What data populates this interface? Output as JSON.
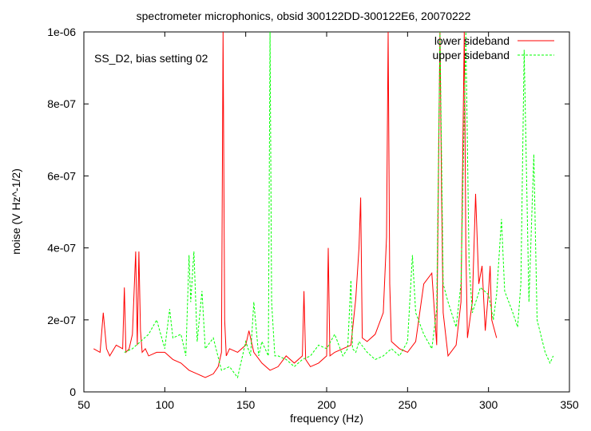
{
  "chart_data": {
    "type": "line",
    "title": "spectrometer microphonics, obsid 300122DD-300122E6, 20070222",
    "xlabel": "frequency (Hz)",
    "ylabel": "noise (V Hz^-1/2)",
    "annotation": "SS_D2, bias setting 02",
    "xlim": [
      50,
      350
    ],
    "ylim": [
      0,
      1e-06
    ],
    "x_ticks": [
      50,
      100,
      150,
      200,
      250,
      300,
      350
    ],
    "x_tick_labels": [
      "50",
      "100",
      "150",
      "200",
      "250",
      "300",
      "350"
    ],
    "y_ticks": [
      0,
      2e-07,
      4e-07,
      6e-07,
      8e-07,
      1e-06
    ],
    "y_tick_labels": [
      "0",
      "2e-07",
      "4e-07",
      "6e-07",
      "8e-07",
      "1e-06"
    ],
    "grid": false,
    "legend_position": "top-right",
    "series": [
      {
        "name": "lower sideband",
        "color": "#ff0000",
        "dash": "solid",
        "x": [
          56,
          60,
          62,
          64,
          66,
          70,
          74,
          75,
          76,
          78,
          80,
          82,
          83,
          84,
          85,
          86,
          88,
          90,
          95,
          100,
          105,
          110,
          115,
          120,
          125,
          130,
          133,
          135,
          136,
          137,
          138,
          140,
          145,
          150,
          152,
          155,
          160,
          165,
          170,
          175,
          180,
          185,
          186,
          187,
          190,
          195,
          200,
          201,
          202,
          205,
          210,
          215,
          218,
          220,
          221,
          222,
          225,
          230,
          235,
          237,
          238,
          239,
          240,
          245,
          250,
          255,
          260,
          265,
          268,
          270,
          271,
          272,
          275,
          280,
          283,
          285,
          286,
          287,
          290,
          292,
          294,
          296,
          298,
          300,
          301,
          302,
          305
        ],
        "y": [
          1.2e-07,
          1.1e-07,
          2.2e-07,
          1.2e-07,
          1e-07,
          1.3e-07,
          1.2e-07,
          2.9e-07,
          1.1e-07,
          1.2e-07,
          1.6e-07,
          3.9e-07,
          1.3e-07,
          3.9e-07,
          1.7e-07,
          1.1e-07,
          1.2e-07,
          1e-07,
          1.1e-07,
          1.1e-07,
          9e-08,
          8e-08,
          6e-08,
          5e-08,
          4e-08,
          5e-08,
          7e-08,
          1.1e-07,
          1e-06,
          2e-07,
          1e-07,
          1.2e-07,
          1.1e-07,
          1.3e-07,
          1.7e-07,
          1.1e-07,
          8e-08,
          6e-08,
          7e-08,
          1e-07,
          8e-08,
          1e-07,
          2.8e-07,
          9e-08,
          7e-08,
          8e-08,
          1e-07,
          4e-07,
          1e-07,
          1.1e-07,
          1.2e-07,
          1.3e-07,
          2.6e-07,
          4e-07,
          5.4e-07,
          1.5e-07,
          1.4e-07,
          1.6e-07,
          2.2e-07,
          4.3e-07,
          1e-06,
          3e-07,
          1.4e-07,
          1.2e-07,
          1.1e-07,
          1.4e-07,
          3e-07,
          3.3e-07,
          1.3e-07,
          1e-06,
          5.5e-07,
          2.2e-07,
          1e-07,
          1.3e-07,
          2.5e-07,
          1e-06,
          4e-07,
          1.5e-07,
          2.5e-07,
          5.5e-07,
          3e-07,
          3.5e-07,
          1.7e-07,
          2.8e-07,
          3.5e-07,
          2e-07,
          1.5e-07
        ]
      },
      {
        "name": "upper sideband",
        "color": "#00ff00",
        "dash": "dashed",
        "x": [
          75,
          80,
          85,
          90,
          95,
          100,
          103,
          105,
          110,
          113,
          115,
          116,
          118,
          120,
          123,
          125,
          130,
          135,
          140,
          145,
          150,
          153,
          155,
          158,
          160,
          164,
          165,
          166,
          168,
          170,
          175,
          180,
          185,
          190,
          195,
          200,
          205,
          210,
          213,
          215,
          216,
          218,
          220,
          225,
          230,
          235,
          240,
          245,
          250,
          253,
          255,
          260,
          265,
          268,
          270,
          272,
          275,
          280,
          283,
          286,
          288,
          290,
          295,
          300,
          303,
          305,
          308,
          310,
          315,
          318,
          320,
          322,
          325,
          328,
          330,
          335,
          338,
          340
        ],
        "y": [
          1.1e-07,
          1.2e-07,
          1.4e-07,
          1.6e-07,
          2e-07,
          1.2e-07,
          2.3e-07,
          1.5e-07,
          1.6e-07,
          1e-07,
          3.8e-07,
          2.5e-07,
          3.9e-07,
          1.4e-07,
          2.8e-07,
          1.2e-07,
          1.5e-07,
          6e-08,
          7e-08,
          4e-08,
          1.4e-07,
          1e-07,
          2.5e-07,
          1e-07,
          1.4e-07,
          1e-07,
          1e-06,
          2.5e-07,
          1e-07,
          1e-07,
          9e-08,
          7e-08,
          9e-08,
          1e-07,
          1.3e-07,
          1.2e-07,
          1.6e-07,
          1e-07,
          1.2e-07,
          3.1e-07,
          1.2e-07,
          1.1e-07,
          1.4e-07,
          1.1e-07,
          9e-08,
          1e-07,
          1.2e-07,
          1e-07,
          1.4e-07,
          3.8e-07,
          2.2e-07,
          1.6e-07,
          1.2e-07,
          2.3e-07,
          1e-06,
          3e-07,
          2.5e-07,
          1.8e-07,
          3e-07,
          1e-06,
          3.6e-07,
          2.2e-07,
          2.9e-07,
          2.7e-07,
          2e-07,
          2.7e-07,
          4.8e-07,
          2.8e-07,
          2.2e-07,
          1.8e-07,
          3e-07,
          9.5e-07,
          2.5e-07,
          6.6e-07,
          2e-07,
          1.1e-07,
          8e-08,
          1e-07
        ]
      }
    ]
  }
}
